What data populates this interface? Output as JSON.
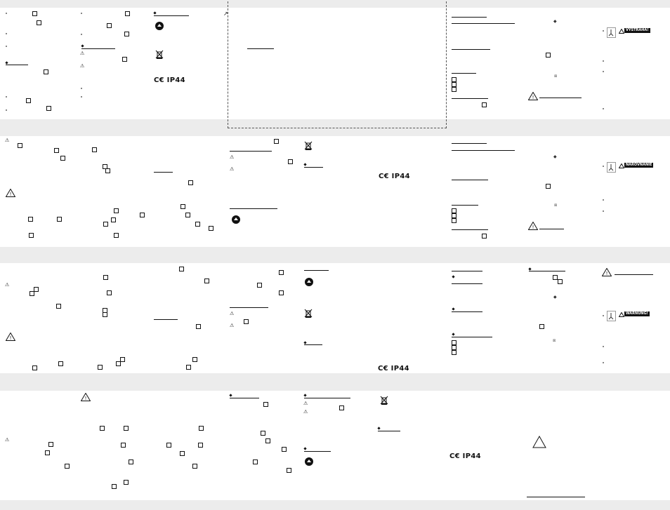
{
  "bands": [
    "band-1",
    "band-2",
    "band-3",
    "band-4",
    "band-5"
  ],
  "ce_mark": "CE IP44",
  "ce_marks": [
    "C€ IP44",
    "C€ IP44",
    "C€ IP44",
    "C€ IP44"
  ],
  "warning_labels": {
    "label_1": "VÝSTRAHA!",
    "label_2": "NAROVNANIE",
    "label_3": "WARNUNG!"
  },
  "icons": {
    "warning": "warning-triangle-icon",
    "disposal": "crossed-bin-icon",
    "recycling": "recycling-icon",
    "hanging_hook": "hook-icon",
    "box": "checkbox-icon"
  }
}
